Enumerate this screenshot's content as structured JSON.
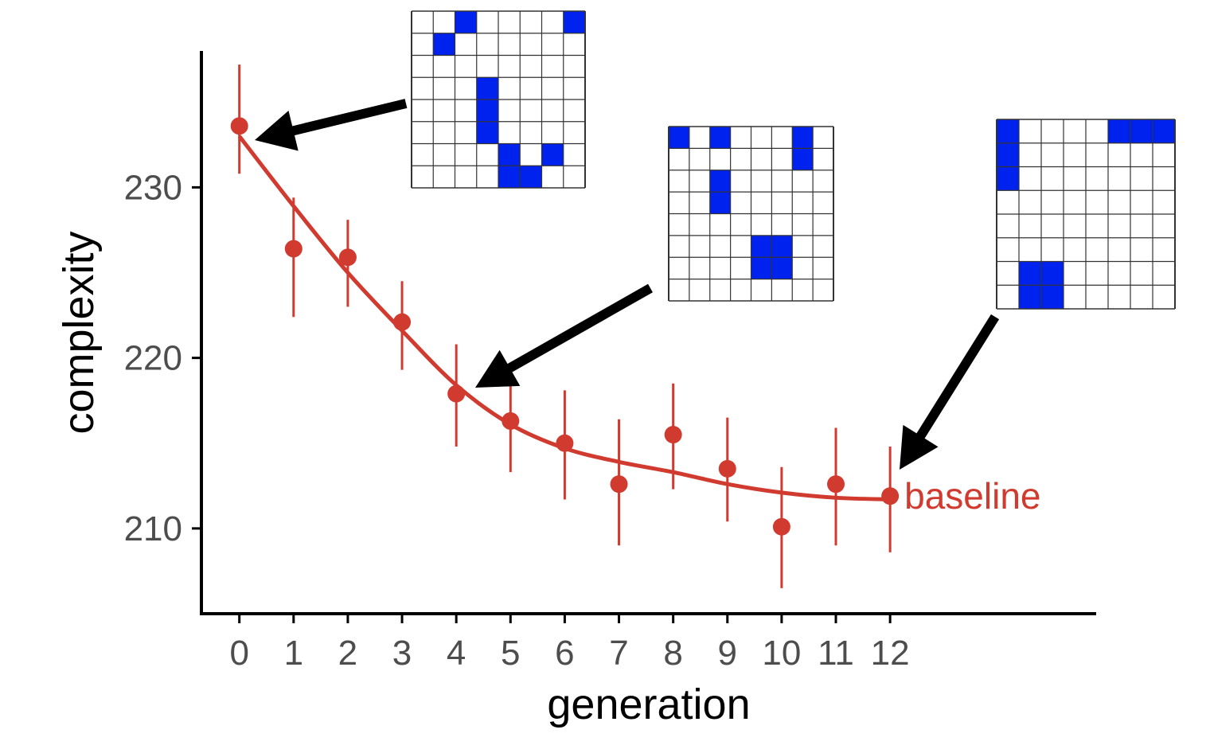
{
  "chart_data": {
    "type": "scatter",
    "xlabel": "generation",
    "ylabel": "complexity",
    "x": [
      0,
      1,
      2,
      3,
      4,
      5,
      6,
      7,
      8,
      9,
      10,
      11,
      12
    ],
    "xticks": [
      "0",
      "1",
      "2",
      "3",
      "4",
      "5",
      "6",
      "7",
      "8",
      "9",
      "10",
      "11",
      "12"
    ],
    "yticks": [
      210,
      220,
      230
    ],
    "ylim": [
      205,
      238
    ],
    "xlim": [
      -0.7,
      15.8
    ],
    "grid": false,
    "series": [
      {
        "color": "#d13b2f",
        "points": [
          {
            "x": 0,
            "y": 233.6,
            "lo": 230.8,
            "hi": 237.2
          },
          {
            "x": 1,
            "y": 226.4,
            "lo": 222.4,
            "hi": 229.4
          },
          {
            "x": 2,
            "y": 225.9,
            "lo": 223.0,
            "hi": 228.1
          },
          {
            "x": 3,
            "y": 222.1,
            "lo": 219.3,
            "hi": 224.5
          },
          {
            "x": 4,
            "y": 217.9,
            "lo": 214.8,
            "hi": 220.8
          },
          {
            "x": 5,
            "y": 216.3,
            "lo": 213.3,
            "hi": 219.1
          },
          {
            "x": 6,
            "y": 215.0,
            "lo": 211.7,
            "hi": 218.1
          },
          {
            "x": 7,
            "y": 212.6,
            "lo": 209.0,
            "hi": 216.4
          },
          {
            "x": 8,
            "y": 215.5,
            "lo": 212.3,
            "hi": 218.5
          },
          {
            "x": 9,
            "y": 213.5,
            "lo": 210.4,
            "hi": 216.5
          },
          {
            "x": 10,
            "y": 210.1,
            "lo": 206.5,
            "hi": 213.6
          },
          {
            "x": 11,
            "y": 212.6,
            "lo": 209.0,
            "hi": 215.9
          },
          {
            "x": 12,
            "y": 211.9,
            "lo": 208.6,
            "hi": 214.8
          }
        ],
        "fit": [
          {
            "x": 0,
            "y": 233.0
          },
          {
            "x": 1,
            "y": 228.9
          },
          {
            "x": 2,
            "y": 225.0
          },
          {
            "x": 3,
            "y": 221.6
          },
          {
            "x": 4,
            "y": 218.4
          },
          {
            "x": 5,
            "y": 216.1
          },
          {
            "x": 6,
            "y": 214.7
          },
          {
            "x": 7,
            "y": 213.9
          },
          {
            "x": 8,
            "y": 213.3
          },
          {
            "x": 9,
            "y": 212.6
          },
          {
            "x": 10,
            "y": 212.1
          },
          {
            "x": 11,
            "y": 211.8
          },
          {
            "x": 12,
            "y": 211.7
          }
        ]
      }
    ],
    "annotations": [
      {
        "text": "baseline",
        "x": 12,
        "y": 211.9,
        "color": "#d13b2f"
      }
    ],
    "insets": [
      {
        "name": "generation-0-pattern",
        "target_x": 0,
        "rows": 8,
        "cols": 8,
        "fill_color": "#0022ee",
        "filled": [
          [
            0,
            2
          ],
          [
            0,
            7
          ],
          [
            1,
            1
          ],
          [
            3,
            3
          ],
          [
            4,
            3
          ],
          [
            5,
            3
          ],
          [
            6,
            4
          ],
          [
            6,
            6
          ],
          [
            7,
            4
          ],
          [
            7,
            5
          ]
        ]
      },
      {
        "name": "generation-4-pattern",
        "target_x": 4,
        "rows": 8,
        "cols": 8,
        "fill_color": "#0022ee",
        "filled": [
          [
            0,
            0
          ],
          [
            0,
            2
          ],
          [
            0,
            6
          ],
          [
            1,
            6
          ],
          [
            2,
            2
          ],
          [
            3,
            2
          ],
          [
            5,
            4
          ],
          [
            5,
            5
          ],
          [
            6,
            4
          ],
          [
            6,
            5
          ]
        ]
      },
      {
        "name": "generation-12-pattern",
        "target_x": 12,
        "rows": 8,
        "cols": 8,
        "fill_color": "#0022ee",
        "filled": [
          [
            0,
            0
          ],
          [
            0,
            5
          ],
          [
            0,
            6
          ],
          [
            0,
            7
          ],
          [
            1,
            0
          ],
          [
            2,
            0
          ],
          [
            6,
            1
          ],
          [
            6,
            2
          ],
          [
            7,
            1
          ],
          [
            7,
            2
          ]
        ]
      }
    ]
  }
}
